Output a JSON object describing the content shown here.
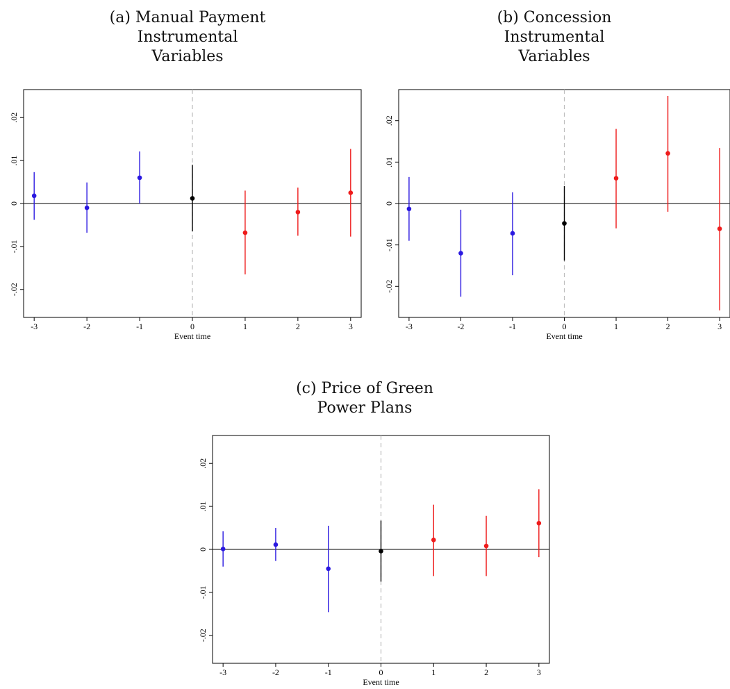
{
  "colors": {
    "pre": "#2a18e0",
    "zero": "#000000",
    "post": "#ee1b1b",
    "zero_line": "#333333",
    "event_line": "#bbbbbb"
  },
  "chart_data": [
    {
      "type": "scatter",
      "panel_title": [
        "(a) Manual Payment",
        "Instrumental",
        "Variables"
      ],
      "xlabel": "Event time",
      "ylabel": "",
      "x_ticks": [
        -3,
        -2,
        -1,
        0,
        1,
        2,
        3
      ],
      "x_tick_labels": [
        "-3",
        "-2",
        "-1",
        "0",
        "1",
        "2",
        "3"
      ],
      "y_ticks": [
        0.02,
        0.01,
        0,
        -0.01,
        -0.02
      ],
      "y_tick_labels": [
        ".02",
        ".01",
        "0",
        "-.01",
        "-.02"
      ],
      "xlim": [
        -3.2,
        3.2
      ],
      "ylim": [
        -0.0265,
        0.0265
      ],
      "points": [
        {
          "x": -3,
          "y": 0.0018,
          "lo": -0.0038,
          "hi": 0.0073
        },
        {
          "x": -2,
          "y": -0.001,
          "lo": -0.0068,
          "hi": 0.0049
        },
        {
          "x": -1,
          "y": 0.006,
          "lo": 0.0,
          "hi": 0.0121
        },
        {
          "x": 0,
          "y": 0.0012,
          "lo": -0.0065,
          "hi": 0.009
        },
        {
          "x": 1,
          "y": -0.0068,
          "lo": -0.0165,
          "hi": 0.003
        },
        {
          "x": 2,
          "y": -0.002,
          "lo": -0.0075,
          "hi": 0.0037
        },
        {
          "x": 3,
          "y": 0.0025,
          "lo": -0.0077,
          "hi": 0.0127
        }
      ]
    },
    {
      "type": "scatter",
      "panel_title": [
        "(b) Concession",
        "Instrumental",
        "Variables"
      ],
      "xlabel": "Event time",
      "ylabel": "",
      "x_ticks": [
        -3,
        -2,
        -1,
        0,
        1,
        2,
        3
      ],
      "x_tick_labels": [
        "-3",
        "-2",
        "-1",
        "0",
        "1",
        "2",
        "3"
      ],
      "y_ticks": [
        0.02,
        0.01,
        0,
        -0.01,
        -0.02
      ],
      "y_tick_labels": [
        ".02",
        ".01",
        "0",
        "-.01",
        "-.02"
      ],
      "xlim": [
        -3.2,
        3.2
      ],
      "ylim": [
        -0.0275,
        0.0275
      ],
      "points": [
        {
          "x": -3,
          "y": -0.0013,
          "lo": -0.009,
          "hi": 0.0064
        },
        {
          "x": -2,
          "y": -0.012,
          "lo": -0.0225,
          "hi": -0.0015
        },
        {
          "x": -1,
          "y": -0.0072,
          "lo": -0.0173,
          "hi": 0.0027
        },
        {
          "x": 0,
          "y": -0.0048,
          "lo": -0.0138,
          "hi": 0.0042
        },
        {
          "x": 1,
          "y": 0.0061,
          "lo": -0.006,
          "hi": 0.018
        },
        {
          "x": 2,
          "y": 0.0121,
          "lo": -0.002,
          "hi": 0.026
        },
        {
          "x": 3,
          "y": -0.0061,
          "lo": -0.0258,
          "hi": 0.0134
        }
      ]
    },
    {
      "type": "scatter",
      "panel_title": [
        "(c) Price of Green",
        "Power Plans"
      ],
      "xlabel": "Event time",
      "ylabel": "",
      "x_ticks": [
        -3,
        -2,
        -1,
        0,
        1,
        2,
        3
      ],
      "x_tick_labels": [
        "-3",
        "-2",
        "-1",
        "0",
        "1",
        "2",
        "3"
      ],
      "y_ticks": [
        0.02,
        0.01,
        0,
        -0.01,
        -0.02
      ],
      "y_tick_labels": [
        ".02",
        ".01",
        "0",
        "-.01",
        "-.02"
      ],
      "xlim": [
        -3.2,
        3.2
      ],
      "ylim": [
        -0.0265,
        0.0265
      ],
      "points": [
        {
          "x": -3,
          "y": 0.0001,
          "lo": -0.004,
          "hi": 0.0042
        },
        {
          "x": -2,
          "y": 0.0011,
          "lo": -0.0027,
          "hi": 0.005
        },
        {
          "x": -1,
          "y": -0.0045,
          "lo": -0.0146,
          "hi": 0.0055
        },
        {
          "x": 0,
          "y": -0.0004,
          "lo": -0.0075,
          "hi": 0.0067
        },
        {
          "x": 1,
          "y": 0.0022,
          "lo": -0.0062,
          "hi": 0.0104
        },
        {
          "x": 2,
          "y": 0.0008,
          "lo": -0.0062,
          "hi": 0.0078
        },
        {
          "x": 3,
          "y": 0.0061,
          "lo": -0.0018,
          "hi": 0.014
        }
      ]
    }
  ]
}
